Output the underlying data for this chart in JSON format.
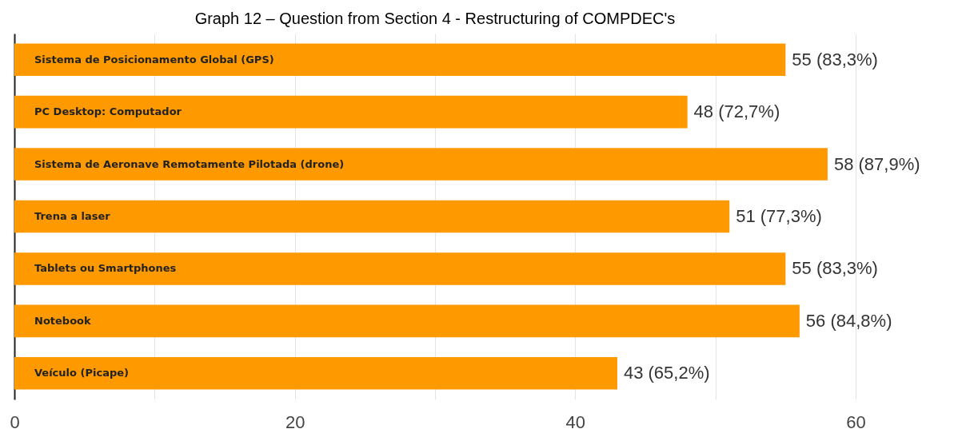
{
  "chart_data": {
    "type": "bar",
    "orientation": "horizontal",
    "title": "Graph 12 – Question from Section 4 - Restructuring of COMPDEC's",
    "categories": [
      "Sistema de Posicionamento Global (GPS)",
      "PC Desktop: Computador",
      "Sistema de Aeronave Remotamente Pilotada (drone)",
      "Trena a laser",
      "Tablets ou Smartphones",
      "Notebook",
      "Veículo (Picape)"
    ],
    "values": [
      55,
      48,
      58,
      51,
      55,
      56,
      43
    ],
    "value_labels": [
      "55 (83,3%)",
      "48 (72,7%)",
      "58 (87,9%)",
      "51 (77,3%)",
      "55 (83,3%)",
      "56 (84,8%)",
      "43 (65,2%)"
    ],
    "color": "#ff9900",
    "xlim": [
      0,
      60
    ],
    "xticks": [
      0,
      {
        "value": 10,
        "label": null
      },
      20,
      {
        "value": 30,
        "label": null
      },
      40,
      {
        "value": 50,
        "label": null
      },
      60
    ],
    "grid": "x"
  }
}
